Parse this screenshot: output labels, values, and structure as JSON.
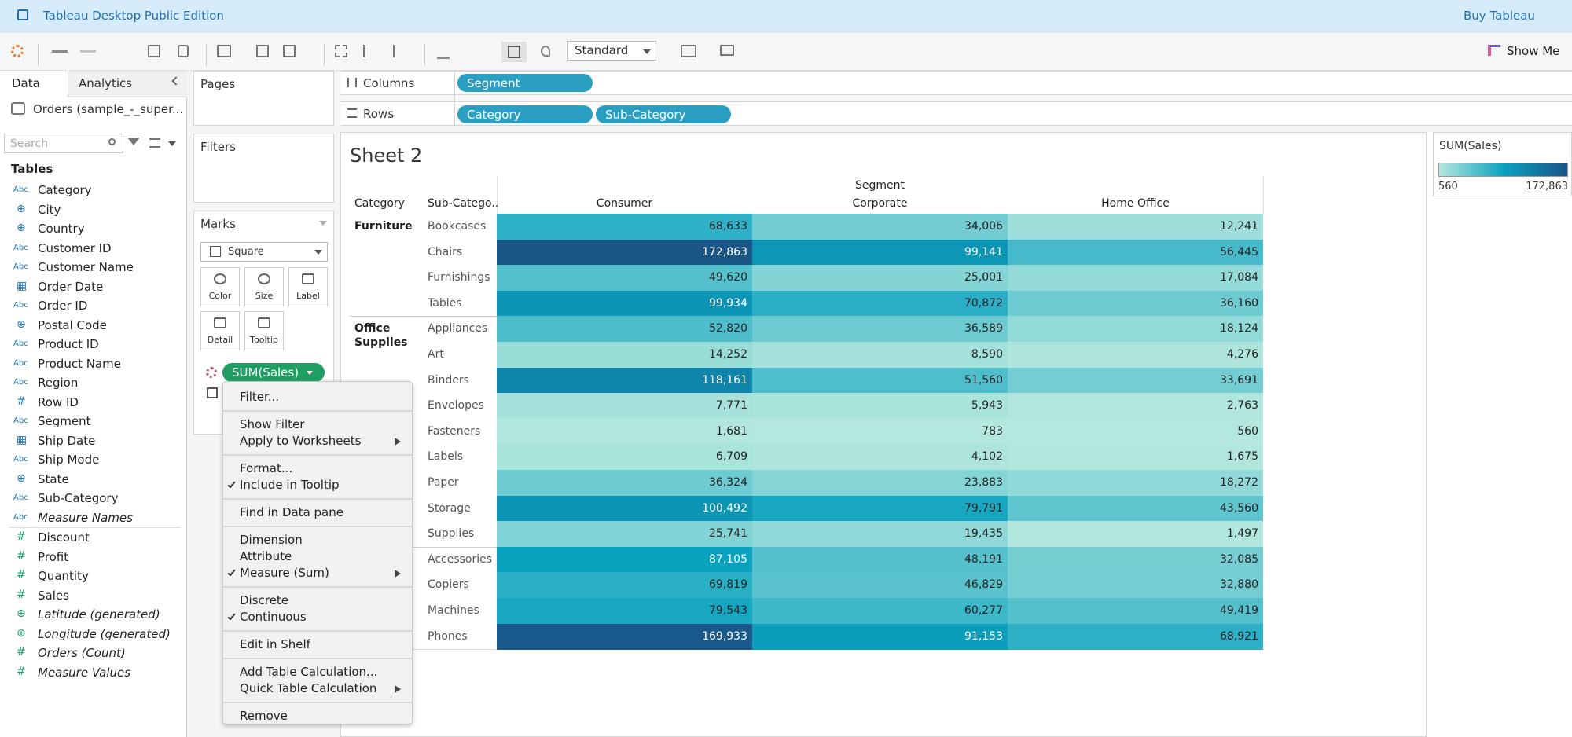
{
  "header": {
    "title": "Tableau Desktop Public Edition",
    "link": "Buy Tableau"
  },
  "toolbar": {
    "fit": "Standard",
    "show_me": "Show Me"
  },
  "data_pane": {
    "tabs": [
      "Data",
      "Analytics"
    ],
    "source": "Orders (sample_-_super...",
    "search": "Search",
    "tables_label": "Tables",
    "dimensions": [
      {
        "icon": "Abc",
        "name": "Category"
      },
      {
        "icon": "⊕",
        "name": "City"
      },
      {
        "icon": "⊕",
        "name": "Country"
      },
      {
        "icon": "Abc",
        "name": "Customer ID"
      },
      {
        "icon": "Abc",
        "name": "Customer Name"
      },
      {
        "icon": "▦",
        "name": "Order Date"
      },
      {
        "icon": "Abc",
        "name": "Order ID"
      },
      {
        "icon": "⊕",
        "name": "Postal Code"
      },
      {
        "icon": "Abc",
        "name": "Product ID"
      },
      {
        "icon": "Abc",
        "name": "Product Name"
      },
      {
        "icon": "Abc",
        "name": "Region"
      },
      {
        "icon": "#",
        "name": "Row ID"
      },
      {
        "icon": "Abc",
        "name": "Segment"
      },
      {
        "icon": "▦",
        "name": "Ship Date"
      },
      {
        "icon": "Abc",
        "name": "Ship Mode"
      },
      {
        "icon": "⊕",
        "name": "State"
      },
      {
        "icon": "Abc",
        "name": "Sub-Category"
      },
      {
        "icon": "Abc",
        "name": "Measure Names",
        "italic": true
      }
    ],
    "measures": [
      {
        "icon": "#",
        "name": "Discount"
      },
      {
        "icon": "#",
        "name": "Profit"
      },
      {
        "icon": "#",
        "name": "Quantity"
      },
      {
        "icon": "#",
        "name": "Sales"
      },
      {
        "icon": "⊕",
        "name": "Latitude (generated)",
        "italic": true
      },
      {
        "icon": "⊕",
        "name": "Longitude (generated)",
        "italic": true
      },
      {
        "icon": "#",
        "name": "Orders (Count)",
        "italic": true
      },
      {
        "icon": "#",
        "name": "Measure Values",
        "italic": true
      }
    ]
  },
  "shelves": {
    "pages": "Pages",
    "filters": "Filters",
    "columns_label": "Columns",
    "columns": [
      "Segment"
    ],
    "rows_label": "Rows",
    "rows": [
      "Category",
      "Sub-Category"
    ]
  },
  "marks": {
    "title": "Marks",
    "mark_type": "Square",
    "buttons": [
      "Color",
      "Size",
      "Label",
      "Detail",
      "Tooltip"
    ],
    "pill": "SUM(Sales)"
  },
  "sheet": {
    "title": "Sheet 2",
    "column_header": "Segment",
    "row_headers": [
      "Category",
      "Sub-Catego.."
    ],
    "segments": [
      "Consumer",
      "Corporate",
      "Home Office"
    ],
    "groups": [
      {
        "category": "Furniture",
        "subcategories": [
          "Bookcases",
          "Chairs",
          "Furnishings",
          "Tables"
        ],
        "values": [
          [
            68633,
            34006,
            12241
          ],
          [
            172863,
            99141,
            56445
          ],
          [
            49620,
            25001,
            17084
          ],
          [
            99934,
            70872,
            36160
          ]
        ],
        "value_labels": [
          [
            "68,633",
            "34,006",
            "12,241"
          ],
          [
            "172,863",
            "99,141",
            "56,445"
          ],
          [
            "49,620",
            "25,001",
            "17,084"
          ],
          [
            "99,934",
            "70,872",
            "36,160"
          ]
        ]
      },
      {
        "category": "Office Supplies",
        "subcategories": [
          "Appliances",
          "Art",
          "Binders",
          "Envelopes",
          "Fasteners",
          "Labels",
          "Paper",
          "Storage",
          "Supplies"
        ],
        "values": [
          [
            52820,
            36589,
            18124
          ],
          [
            14252,
            8590,
            4276
          ],
          [
            118161,
            51560,
            33691
          ],
          [
            7771,
            5943,
            2763
          ],
          [
            1681,
            783,
            560
          ],
          [
            6709,
            4102,
            1675
          ],
          [
            36324,
            23883,
            18272
          ],
          [
            100492,
            79791,
            43560
          ],
          [
            25741,
            19435,
            1497
          ]
        ],
        "value_labels": [
          [
            "52,820",
            "36,589",
            "18,124"
          ],
          [
            "14,252",
            "8,590",
            "4,276"
          ],
          [
            "118,161",
            "51,560",
            "33,691"
          ],
          [
            "7,771",
            "5,943",
            "2,763"
          ],
          [
            "1,681",
            "783",
            "560"
          ],
          [
            "6,709",
            "4,102",
            "1,675"
          ],
          [
            "36,324",
            "23,883",
            "18,272"
          ],
          [
            "100,492",
            "79,791",
            "43,560"
          ],
          [
            "25,741",
            "19,435",
            "1,497"
          ]
        ]
      },
      {
        "category": null,
        "subcategories": [
          "Accessories",
          "Copiers",
          "Machines",
          "Phones"
        ],
        "values": [
          [
            87105,
            48191,
            32085
          ],
          [
            69819,
            46829,
            32880
          ],
          [
            79543,
            60277,
            49419
          ],
          [
            169933,
            91153,
            68921
          ]
        ],
        "value_labels": [
          [
            "87,105",
            "48,191",
            "32,085"
          ],
          [
            "69,819",
            "46,829",
            "32,880"
          ],
          [
            "79,543",
            "60,277",
            "49,419"
          ],
          [
            "169,933",
            "91,153",
            "68,921"
          ]
        ]
      }
    ]
  },
  "legend": {
    "title": "SUM(Sales)",
    "min": 560,
    "max": {
      "value": 172863,
      "label": "172,863"
    },
    "colors": [
      "#b4e8de",
      "#0aa1bf",
      "#1a5588"
    ]
  },
  "context_menu": {
    "sections": [
      [
        {
          "label": "Filter..."
        }
      ],
      [
        {
          "label": "Show Filter"
        },
        {
          "label": "Apply to Worksheets",
          "submenu": true
        }
      ],
      [
        {
          "label": "Format..."
        },
        {
          "label": "Include in Tooltip",
          "checked": true
        }
      ],
      [
        {
          "label": "Find in Data pane"
        }
      ],
      [
        {
          "label": "Dimension"
        },
        {
          "label": "Attribute"
        },
        {
          "label": "Measure (Sum)",
          "checked": true,
          "submenu": true
        }
      ],
      [
        {
          "label": "Discrete"
        },
        {
          "label": "Continuous",
          "checked": true
        }
      ],
      [
        {
          "label": "Edit in Shelf"
        }
      ],
      [
        {
          "label": "Add Table Calculation..."
        },
        {
          "label": "Quick Table Calculation",
          "submenu": true
        }
      ],
      [
        {
          "label": "Remove"
        }
      ]
    ]
  }
}
